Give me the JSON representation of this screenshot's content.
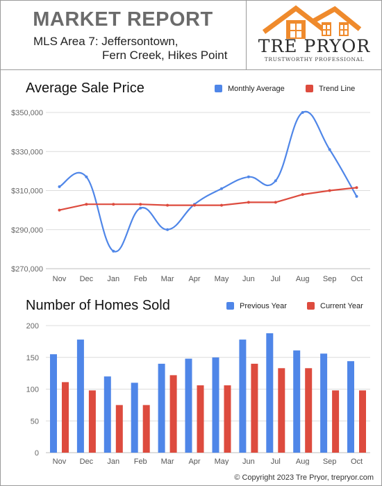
{
  "header": {
    "title": "MARKET REPORT",
    "area_line1": "MLS Area 7:  Jeffersontown,",
    "area_line2": "Fern Creek, Hikes Point"
  },
  "logo": {
    "name": "TRE PRYOR",
    "tagline": "TRUSTWORTHY PROFESSIONAL",
    "color": "#ef8a2c"
  },
  "footer": {
    "text": "© Copyright 2023 Tre Pryor, trepryor.com"
  },
  "chart_data": [
    {
      "type": "line",
      "title": "Average Sale Price",
      "categories": [
        "Nov",
        "Dec",
        "Jan",
        "Feb",
        "Mar",
        "Apr",
        "May",
        "Jun",
        "Jul",
        "Aug",
        "Sep",
        "Oct"
      ],
      "series": [
        {
          "name": "Monthly Average",
          "color": "#4f86e8",
          "smooth": true,
          "values": [
            312000,
            317000,
            279000,
            301000,
            290000,
            303000,
            311000,
            317000,
            315000,
            350000,
            331000,
            307000
          ]
        },
        {
          "name": "Trend Line",
          "color": "#dd4b3e",
          "smooth": false,
          "values": [
            300000,
            303000,
            303000,
            303000,
            302500,
            302500,
            302500,
            304000,
            304000,
            308000,
            310000,
            311500
          ]
        }
      ],
      "y_ticks": [
        "$270,000",
        "$290,000",
        "$310,000",
        "$330,000",
        "$350,000"
      ],
      "ylim": [
        270000,
        350000
      ],
      "grid": true,
      "legend": "top-right"
    },
    {
      "type": "bar",
      "title": "Number of Homes Sold",
      "categories": [
        "Nov",
        "Dec",
        "Jan",
        "Feb",
        "Mar",
        "Apr",
        "May",
        "Jun",
        "Jul",
        "Aug",
        "Sep",
        "Oct"
      ],
      "series": [
        {
          "name": "Previous Year",
          "color": "#4f86e8",
          "values": [
            155,
            178,
            120,
            110,
            140,
            148,
            150,
            178,
            188,
            161,
            156,
            144
          ]
        },
        {
          "name": "Current Year",
          "color": "#dd4b3e",
          "values": [
            111,
            98,
            75,
            75,
            122,
            106,
            106,
            140,
            133,
            133,
            98,
            98
          ]
        }
      ],
      "y_ticks": [
        "0",
        "50",
        "100",
        "150",
        "200"
      ],
      "ylim": [
        0,
        200
      ],
      "grid": true,
      "legend": "top-right"
    }
  ]
}
